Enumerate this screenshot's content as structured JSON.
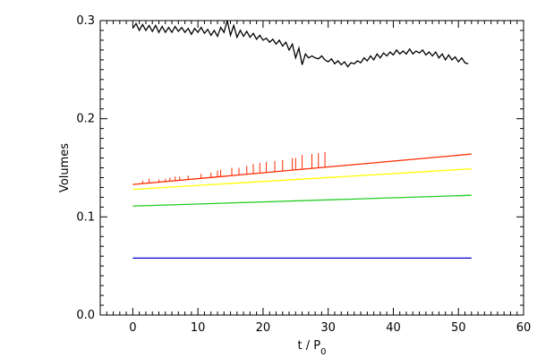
{
  "chart_data": {
    "type": "line",
    "title": "",
    "xlabel": "t / P",
    "xlabel_sub": "0",
    "ylabel": "Volumes",
    "xlim": [
      -5,
      60
    ],
    "ylim": [
      0.0,
      0.3
    ],
    "x_ticks": [
      0,
      10,
      20,
      30,
      40,
      50,
      60
    ],
    "x_tick_labels": [
      "0",
      "10",
      "20",
      "30",
      "40",
      "50",
      "60"
    ],
    "y_ticks": [
      0.0,
      0.1,
      0.2,
      0.3
    ],
    "y_tick_labels": [
      "0.0",
      "0.1",
      "0.2",
      "0.3"
    ],
    "x_minor_step": 1,
    "y_minor_step": 0.01,
    "grid": false,
    "legend": "none",
    "series": [
      {
        "color": "#000000",
        "x": [
          0,
          0.5,
          1,
          1.5,
          2,
          2.5,
          3,
          3.5,
          4,
          4.5,
          5,
          5.5,
          6,
          6.5,
          7,
          7.5,
          8,
          8.5,
          9,
          9.5,
          10,
          10.5,
          11,
          11.5,
          12,
          12.5,
          13,
          13.5,
          14,
          14.5,
          15,
          15.5,
          16,
          16.5,
          17,
          17.5,
          18,
          18.5,
          19,
          19.5,
          20,
          20.5,
          21,
          21.5,
          22,
          22.5,
          23,
          23.5,
          24,
          24.5,
          25,
          25.5,
          26,
          26.5,
          27,
          27.5,
          28,
          28.5,
          29,
          29.5,
          30,
          30.5,
          31,
          31.5,
          32,
          32.5,
          33,
          33.5,
          34,
          34.5,
          35,
          35.5,
          36,
          36.5,
          37,
          37.5,
          38,
          38.5,
          39,
          39.5,
          40,
          40.5,
          41,
          41.5,
          42,
          42.5,
          43,
          43.5,
          44,
          44.5,
          45,
          45.5,
          46,
          46.5,
          47,
          47.5,
          48,
          48.5,
          49,
          49.5,
          50,
          50.5,
          51,
          51.5
        ],
        "y": [
          0.292,
          0.297,
          0.29,
          0.296,
          0.29,
          0.295,
          0.289,
          0.295,
          0.288,
          0.294,
          0.288,
          0.293,
          0.288,
          0.294,
          0.289,
          0.293,
          0.288,
          0.292,
          0.286,
          0.292,
          0.288,
          0.293,
          0.287,
          0.291,
          0.285,
          0.29,
          0.284,
          0.293,
          0.288,
          0.3,
          0.285,
          0.295,
          0.283,
          0.29,
          0.284,
          0.289,
          0.283,
          0.287,
          0.281,
          0.285,
          0.28,
          0.282,
          0.278,
          0.281,
          0.276,
          0.28,
          0.274,
          0.278,
          0.27,
          0.276,
          0.262,
          0.272,
          0.255,
          0.266,
          0.262,
          0.264,
          0.262,
          0.261,
          0.264,
          0.26,
          0.258,
          0.261,
          0.256,
          0.259,
          0.255,
          0.258,
          0.253,
          0.257,
          0.256,
          0.259,
          0.257,
          0.262,
          0.259,
          0.264,
          0.26,
          0.266,
          0.262,
          0.267,
          0.264,
          0.268,
          0.265,
          0.27,
          0.266,
          0.269,
          0.266,
          0.271,
          0.266,
          0.269,
          0.267,
          0.27,
          0.265,
          0.268,
          0.264,
          0.268,
          0.262,
          0.266,
          0.26,
          0.265,
          0.26,
          0.263,
          0.258,
          0.262,
          0.257,
          0.256
        ]
      },
      {
        "color": "#ff2a00",
        "x": [
          0,
          52
        ],
        "y": [
          0.133,
          0.164
        ],
        "spikes": [
          {
            "x": 1.5,
            "top": 0.137
          },
          {
            "x": 2.5,
            "top": 0.139
          },
          {
            "x": 4,
            "top": 0.138
          },
          {
            "x": 5,
            "top": 0.139
          },
          {
            "x": 5.7,
            "top": 0.14
          },
          {
            "x": 6.5,
            "top": 0.141
          },
          {
            "x": 7.2,
            "top": 0.141
          },
          {
            "x": 8.5,
            "top": 0.142
          },
          {
            "x": 10.5,
            "top": 0.144
          },
          {
            "x": 12,
            "top": 0.145
          },
          {
            "x": 13,
            "top": 0.147
          },
          {
            "x": 13.5,
            "top": 0.148
          },
          {
            "x": 15.2,
            "top": 0.15
          },
          {
            "x": 16.3,
            "top": 0.15
          },
          {
            "x": 17.5,
            "top": 0.152
          },
          {
            "x": 18.5,
            "top": 0.154
          },
          {
            "x": 19.5,
            "top": 0.155
          },
          {
            "x": 20.5,
            "top": 0.156
          },
          {
            "x": 21.8,
            "top": 0.157
          },
          {
            "x": 23,
            "top": 0.158
          },
          {
            "x": 24.5,
            "top": 0.16
          },
          {
            "x": 25,
            "top": 0.16
          },
          {
            "x": 26,
            "top": 0.163
          },
          {
            "x": 27.5,
            "top": 0.164
          },
          {
            "x": 28.5,
            "top": 0.165
          },
          {
            "x": 29.5,
            "top": 0.166
          }
        ]
      },
      {
        "color": "#ffff00",
        "x": [
          0,
          52
        ],
        "y": [
          0.128,
          0.149
        ]
      },
      {
        "color": "#22cc22",
        "x": [
          0,
          52
        ],
        "y": [
          0.111,
          0.122
        ]
      },
      {
        "color": "#0000cc",
        "x": [
          0,
          52
        ],
        "y": [
          0.058,
          0.058
        ]
      }
    ]
  }
}
